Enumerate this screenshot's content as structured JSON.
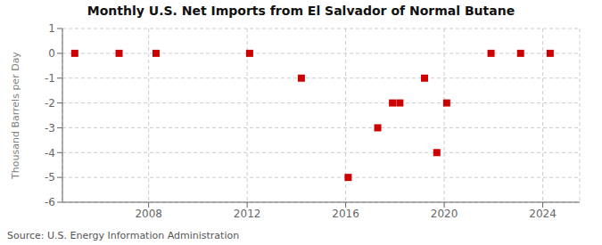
{
  "chart_data": {
    "type": "scatter",
    "title": "Monthly U.S. Net Imports from El Salvador of Normal Butane",
    "ylabel": "Thousand Barrels per Day",
    "source": "Source: U.S. Energy Information Administration",
    "x": [
      2005.0,
      2006.8,
      2008.3,
      2012.1,
      2014.2,
      2016.1,
      2017.3,
      2017.9,
      2018.2,
      2019.2,
      2019.7,
      2020.1,
      2021.9,
      2023.1,
      2024.3
    ],
    "values": [
      0,
      0,
      0,
      0,
      -1,
      -5,
      -3,
      -2,
      -2,
      -1,
      -4,
      -2,
      0,
      0,
      0
    ],
    "color": "#cc0000",
    "marker": "square",
    "xlim": [
      2004.5,
      2025.5
    ],
    "xticks": [
      2008,
      2012,
      2016,
      2020,
      2024
    ],
    "ylim": [
      -6,
      1
    ],
    "yticks": [
      1,
      0,
      -1,
      -2,
      -3,
      -4,
      -5,
      -6
    ],
    "grid": true
  }
}
